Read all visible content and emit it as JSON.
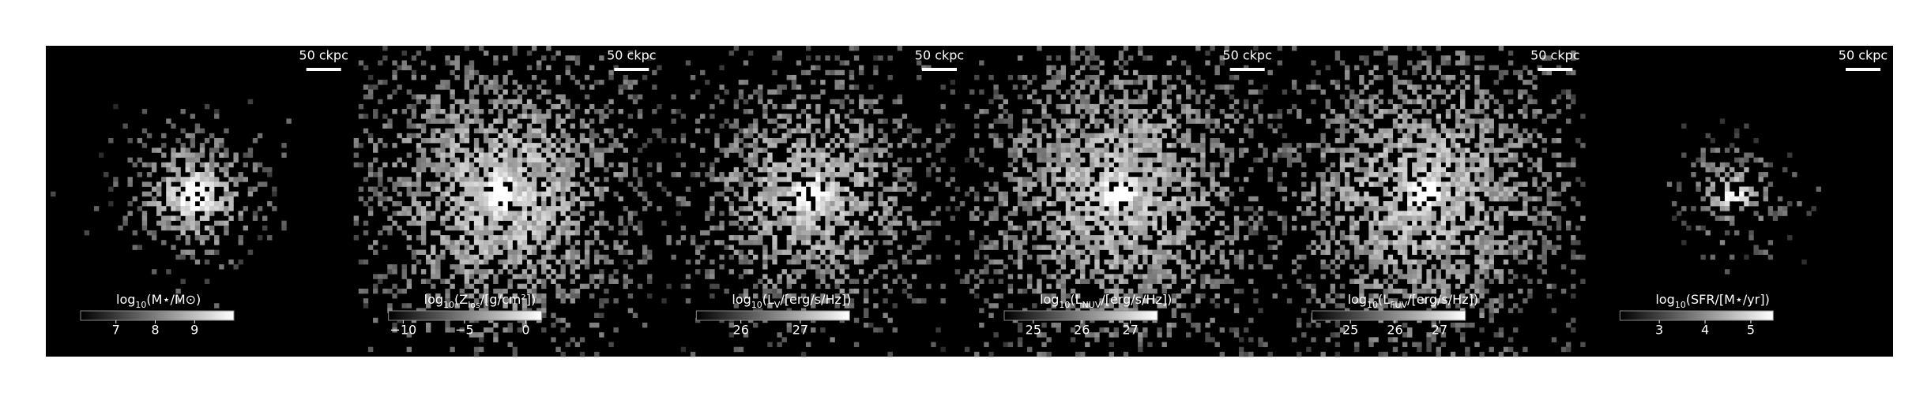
{
  "chart_data": [
    {
      "type": "image",
      "scalebar_label": "50 ckpc",
      "colorbar_label": [
        {
          "text": "log"
        },
        {
          "text": "10",
          "sub": true
        },
        {
          "text": "(M⋆/M⊙)"
        }
      ],
      "clim": [
        6.1,
        10.0
      ],
      "colorbar_ticks": [
        7,
        8,
        9
      ]
    },
    {
      "type": "image",
      "scalebar_label": "50 ckpc",
      "colorbar_label": [
        {
          "text": "log"
        },
        {
          "text": "10",
          "sub": true
        },
        {
          "text": "(Z"
        },
        {
          "text": "los",
          "sub": true
        },
        {
          "text": "/[g/cm²])"
        }
      ],
      "clim": [
        -11.2,
        1.3
      ],
      "colorbar_ticks": [
        {
          "value": -10,
          "label": "−10"
        },
        {
          "value": -5,
          "label": "−5"
        },
        0
      ]
    },
    {
      "type": "image",
      "scalebar_label": "50 ckpc",
      "colorbar_label": [
        {
          "text": "log"
        },
        {
          "text": "10",
          "sub": true
        },
        {
          "text": "(L"
        },
        {
          "text": "V",
          "sub": true
        },
        {
          "text": "/[erg/s/Hz])"
        }
      ],
      "clim": [
        25.25,
        27.83
      ],
      "colorbar_ticks": [
        26,
        27
      ]
    },
    {
      "type": "image",
      "scalebar_label": "50 ckpc",
      "colorbar_label": [
        {
          "text": "log"
        },
        {
          "text": "10",
          "sub": true
        },
        {
          "text": "(L"
        },
        {
          "text": "NUV",
          "sub": true
        },
        {
          "text": "/[erg/s/Hz])"
        }
      ],
      "clim": [
        24.4,
        27.56
      ],
      "colorbar_ticks": [
        25,
        26,
        27
      ]
    },
    {
      "type": "image",
      "scalebar_label": "50 ckpc",
      "colorbar_label": [
        {
          "text": "log"
        },
        {
          "text": "10",
          "sub": true
        },
        {
          "text": "(L"
        },
        {
          "text": "FUV",
          "sub": true
        },
        {
          "text": "/[erg/s/Hz])"
        }
      ],
      "clim": [
        24.14,
        27.58
      ],
      "colorbar_ticks": [
        25,
        26,
        27
      ]
    },
    {
      "type": "image",
      "scalebar_label": "50 ckpc",
      "colorbar_label": [
        {
          "text": "log"
        },
        {
          "text": "10",
          "sub": true
        },
        {
          "text": "(SFR/[M⋆/yr])"
        }
      ],
      "clim": [
        2.14,
        5.49
      ],
      "colorbar_ticks": [
        3,
        4,
        5
      ]
    }
  ]
}
